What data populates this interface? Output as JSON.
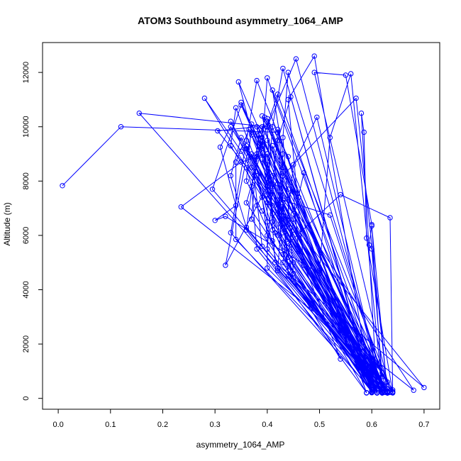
{
  "chart_data": {
    "type": "line",
    "title": "ATOM3 Southbound asymmetry_1064_AMP",
    "xlabel": "asymmetry_1064_AMP",
    "ylabel": "Altitude (m)",
    "xlim": [
      -0.03,
      0.73
    ],
    "ylim": [
      -400,
      13100
    ],
    "x_ticks": [
      {
        "value": 0.0,
        "label": "0.0"
      },
      {
        "value": 0.1,
        "label": "0.1"
      },
      {
        "value": 0.2,
        "label": "0.2"
      },
      {
        "value": 0.3,
        "label": "0.3"
      },
      {
        "value": 0.4,
        "label": "0.4"
      },
      {
        "value": 0.5,
        "label": "0.5"
      },
      {
        "value": 0.6,
        "label": "0.6"
      },
      {
        "value": 0.7,
        "label": "0.7"
      }
    ],
    "y_ticks": [
      {
        "value": 0,
        "label": "0"
      },
      {
        "value": 2000,
        "label": "2000"
      },
      {
        "value": 4000,
        "label": "4000"
      },
      {
        "value": 6000,
        "label": "6000"
      },
      {
        "value": 8000,
        "label": "8000"
      },
      {
        "value": 10000,
        "label": "10000"
      },
      {
        "value": 12000,
        "label": "12000"
      }
    ],
    "grid": false,
    "legend": "none",
    "marker": "open-circle",
    "color": "#0000ff",
    "series": [
      {
        "points": [
          [
            0.008,
            7830
          ],
          [
            0.12,
            10000
          ],
          [
            0.42,
            9800
          ],
          [
            0.4,
            5500
          ],
          [
            0.63,
            200
          ],
          [
            0.155,
            10500
          ],
          [
            0.4,
            10000
          ],
          [
            0.41,
            6500
          ],
          [
            0.62,
            300
          ],
          [
            0.28,
            11050
          ],
          [
            0.35,
            9100
          ],
          [
            0.44,
            5900
          ],
          [
            0.61,
            200
          ],
          [
            0.33,
            10200
          ],
          [
            0.37,
            8500
          ],
          [
            0.45,
            6200
          ],
          [
            0.63,
            250
          ],
          [
            0.37,
            9700
          ],
          [
            0.42,
            7000
          ],
          [
            0.6,
            400
          ],
          [
            0.385,
            9900
          ],
          [
            0.36,
            6200
          ],
          [
            0.59,
            210
          ],
          [
            0.395,
            10350
          ],
          [
            0.375,
            8200
          ],
          [
            0.39,
            5600
          ],
          [
            0.62,
            300
          ],
          [
            0.4,
            11800
          ],
          [
            0.39,
            9300
          ],
          [
            0.41,
            7900
          ],
          [
            0.64,
            200
          ],
          [
            0.41,
            11350
          ],
          [
            0.43,
            9000
          ],
          [
            0.42,
            6800
          ],
          [
            0.6,
            350
          ],
          [
            0.43,
            12150
          ],
          [
            0.41,
            10000
          ],
          [
            0.4,
            7500
          ],
          [
            0.63,
            210
          ],
          [
            0.44,
            12000
          ],
          [
            0.43,
            9600
          ],
          [
            0.45,
            4600
          ],
          [
            0.62,
            260
          ],
          [
            0.455,
            12500
          ],
          [
            0.4,
            10000
          ],
          [
            0.46,
            7400
          ],
          [
            0.6,
            240
          ],
          [
            0.49,
            12600
          ],
          [
            0.44,
            11000
          ],
          [
            0.47,
            4900
          ],
          [
            0.635,
            220
          ],
          [
            0.49,
            12000
          ],
          [
            0.55,
            11900
          ],
          [
            0.6,
            6400
          ],
          [
            0.62,
            300
          ],
          [
            0.56,
            11950
          ],
          [
            0.52,
            9600
          ],
          [
            0.5,
            4700
          ],
          [
            0.63,
            270
          ],
          [
            0.57,
            11050
          ],
          [
            0.43,
            8200
          ],
          [
            0.42,
            6000
          ],
          [
            0.61,
            220
          ],
          [
            0.58,
            10500
          ],
          [
            0.585,
            9800
          ],
          [
            0.59,
            5900
          ],
          [
            0.64,
            230
          ],
          [
            0.635,
            6650
          ],
          [
            0.54,
            7500
          ],
          [
            0.44,
            5700
          ],
          [
            0.63,
            200
          ],
          [
            0.6,
            6350
          ],
          [
            0.595,
            5650
          ],
          [
            0.6,
            5500
          ],
          [
            0.62,
            800
          ],
          [
            0.52,
            6750
          ],
          [
            0.43,
            7300
          ],
          [
            0.42,
            4700
          ],
          [
            0.6,
            500
          ],
          [
            0.47,
            8300
          ],
          [
            0.45,
            6600
          ],
          [
            0.44,
            5200
          ],
          [
            0.62,
            250
          ],
          [
            0.495,
            10350
          ],
          [
            0.45,
            8600
          ],
          [
            0.43,
            5000
          ],
          [
            0.54,
            1450
          ],
          [
            0.35,
            10900
          ],
          [
            0.39,
            9200
          ],
          [
            0.36,
            7200
          ],
          [
            0.6,
            300
          ],
          [
            0.365,
            9900
          ],
          [
            0.34,
            8700
          ],
          [
            0.34,
            5850
          ],
          [
            0.62,
            210
          ],
          [
            0.38,
            11700
          ],
          [
            0.36,
            9500
          ],
          [
            0.33,
            6100
          ],
          [
            0.6,
            300
          ],
          [
            0.345,
            11650
          ],
          [
            0.37,
            9800
          ],
          [
            0.32,
            4900
          ],
          [
            0.4,
            7800
          ],
          [
            0.63,
            600
          ],
          [
            0.33,
            10000
          ],
          [
            0.31,
            9250
          ],
          [
            0.34,
            7100
          ],
          [
            0.3,
            6550
          ],
          [
            0.32,
            6700
          ],
          [
            0.5,
            4600
          ],
          [
            0.63,
            200
          ],
          [
            0.295,
            7700
          ],
          [
            0.35,
            10800
          ],
          [
            0.41,
            8200
          ],
          [
            0.68,
            300
          ],
          [
            0.235,
            7050
          ],
          [
            0.35,
            8700
          ],
          [
            0.4,
            9000
          ],
          [
            0.415,
            5000
          ],
          [
            0.7,
            400
          ],
          [
            0.305,
            9850
          ],
          [
            0.38,
            10000
          ],
          [
            0.4,
            8600
          ],
          [
            0.4,
            4800
          ],
          [
            0.64,
            250
          ],
          [
            0.39,
            10400
          ],
          [
            0.43,
            7200
          ],
          [
            0.44,
            4500
          ],
          [
            0.625,
            220
          ],
          [
            0.42,
            11200
          ],
          [
            0.38,
            8900
          ],
          [
            0.37,
            6600
          ],
          [
            0.6,
            320
          ],
          [
            0.4,
            10200
          ],
          [
            0.45,
            7600
          ],
          [
            0.46,
            5400
          ],
          [
            0.6,
            260
          ],
          [
            0.445,
            11100
          ],
          [
            0.42,
            9500
          ],
          [
            0.44,
            4700
          ],
          [
            0.61,
            200
          ],
          [
            0.37,
            10100
          ],
          [
            0.36,
            8000
          ],
          [
            0.39,
            6900
          ],
          [
            0.63,
            210
          ],
          [
            0.41,
            9300
          ],
          [
            0.43,
            6300
          ],
          [
            0.45,
            4400
          ],
          [
            0.62,
            950
          ],
          [
            0.385,
            9700
          ],
          [
            0.37,
            7800
          ],
          [
            0.38,
            5500
          ],
          [
            0.6,
            240
          ],
          [
            0.35,
            9600
          ],
          [
            0.33,
            8200
          ],
          [
            0.36,
            6300
          ],
          [
            0.62,
            200
          ],
          [
            0.33,
            9300
          ],
          [
            0.34,
            10700
          ],
          [
            0.41,
            7100
          ],
          [
            0.64,
            310
          ],
          [
            0.36,
            9200
          ],
          [
            0.39,
            7400
          ],
          [
            0.4,
            6000
          ],
          [
            0.62,
            220
          ],
          [
            0.38,
            9000
          ],
          [
            0.42,
            7300
          ],
          [
            0.43,
            5300
          ],
          [
            0.6,
            210
          ],
          [
            0.39,
            8800
          ],
          [
            0.41,
            6800
          ],
          [
            0.45,
            5000
          ],
          [
            0.63,
            200
          ],
          [
            0.4,
            9500
          ],
          [
            0.44,
            7700
          ],
          [
            0.46,
            6000
          ],
          [
            0.61,
            270
          ],
          [
            0.36,
            9300
          ],
          [
            0.38,
            8200
          ],
          [
            0.41,
            6200
          ],
          [
            0.59,
            200
          ],
          [
            0.42,
            9900
          ],
          [
            0.43,
            8500
          ],
          [
            0.43,
            6700
          ],
          [
            0.62,
            240
          ],
          [
            0.37,
            9000
          ],
          [
            0.4,
            7200
          ],
          [
            0.44,
            5200
          ],
          [
            0.6,
            600
          ],
          [
            0.38,
            9700
          ],
          [
            0.41,
            7800
          ],
          [
            0.43,
            6100
          ],
          [
            0.63,
            230
          ],
          [
            0.39,
            10000
          ],
          [
            0.415,
            6100
          ],
          [
            0.44,
            4900
          ],
          [
            0.6,
            210
          ],
          [
            0.38,
            8200
          ],
          [
            0.4,
            6500
          ],
          [
            0.42,
            4800
          ],
          [
            0.62,
            200
          ],
          [
            0.4,
            9000
          ],
          [
            0.42,
            7900
          ],
          [
            0.44,
            6400
          ],
          [
            0.61,
            330
          ],
          [
            0.39,
            9600
          ],
          [
            0.4,
            8100
          ],
          [
            0.45,
            6800
          ],
          [
            0.63,
            260
          ],
          [
            0.36,
            8500
          ],
          [
            0.38,
            7100
          ],
          [
            0.41,
            5800
          ],
          [
            0.6,
            230
          ],
          [
            0.4,
            10300
          ],
          [
            0.44,
            8900
          ],
          [
            0.46,
            7400
          ],
          [
            0.62,
            200
          ]
        ]
      }
    ]
  }
}
